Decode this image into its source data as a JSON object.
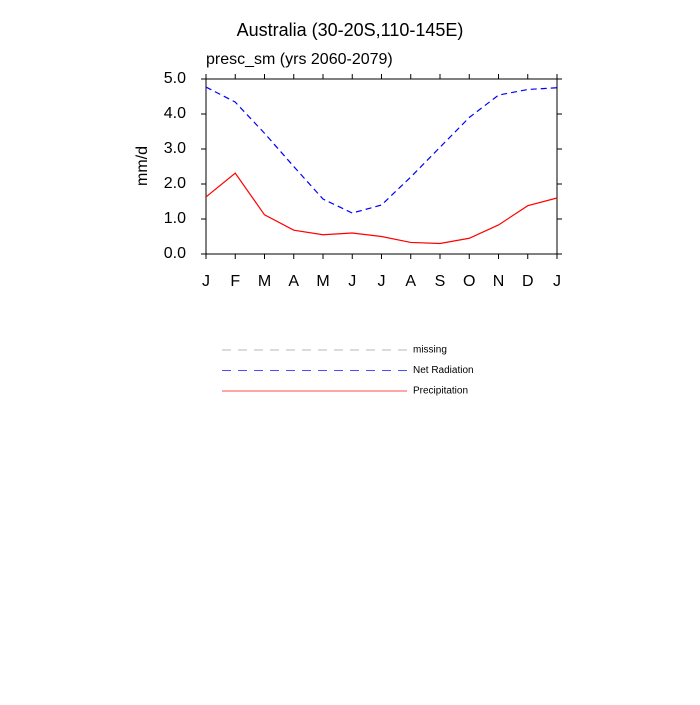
{
  "chart_data": {
    "type": "line",
    "title": "Australia (30-20S,110-145E)",
    "subtitle": "presc_sm (yrs 2060-2079)",
    "y_label": "mm/d",
    "categories": [
      "J",
      "F",
      "M",
      "A",
      "M",
      "J",
      "J",
      "A",
      "S",
      "O",
      "N",
      "D",
      "J"
    ],
    "series": [
      {
        "name": "missing",
        "color": "#999999",
        "dash": true,
        "values": [
          null,
          null,
          null,
          null,
          null,
          null,
          null,
          null,
          null,
          null,
          null,
          null,
          null
        ]
      },
      {
        "name": "Net Radiation",
        "color": "#0000ff",
        "dash": true,
        "values": [
          4.77,
          4.34,
          3.45,
          2.5,
          1.57,
          1.17,
          1.4,
          2.2,
          3.05,
          3.9,
          4.54,
          4.7,
          4.75
        ]
      },
      {
        "name": "Precipitation",
        "color": "#ff0000",
        "dash": false,
        "values": [
          1.63,
          2.31,
          1.12,
          0.68,
          0.55,
          0.6,
          0.5,
          0.33,
          0.3,
          0.45,
          0.83,
          1.38,
          1.6
        ]
      }
    ],
    "ylim": [
      0,
      5
    ],
    "yticks": [
      {
        "value": 0,
        "label": "0.0"
      },
      {
        "value": 1,
        "label": "1.0"
      },
      {
        "value": 2,
        "label": "2.0"
      },
      {
        "value": 3,
        "label": "3.0"
      },
      {
        "value": 4,
        "label": "4.0"
      },
      {
        "value": 5,
        "label": "5.0"
      }
    ]
  }
}
